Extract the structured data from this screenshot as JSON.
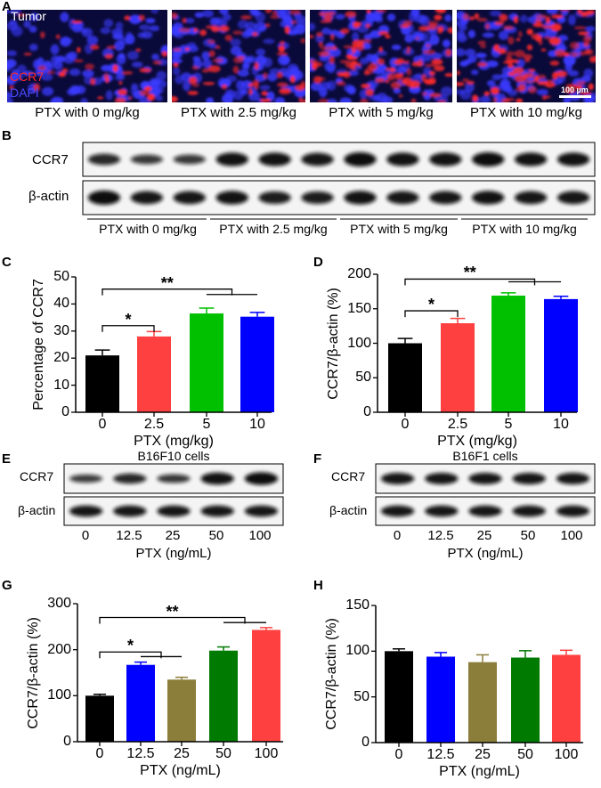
{
  "panels": {
    "A": {
      "letter": "A",
      "tissue_label": "Tumor",
      "stain1": "CCR7",
      "stain2": "DAPI",
      "scale_bar": "100 µm",
      "stain1_color": "#ff2a2a",
      "stain2_color": "#3a3aff",
      "image_labels": [
        "PTX with 0 mg/kg",
        "PTX with 2.5 mg/kg",
        "PTX with 5 mg/kg",
        "PTX with 10 mg/kg"
      ],
      "red_intensity": [
        0.3,
        0.5,
        0.85,
        0.8
      ]
    },
    "B": {
      "letter": "B",
      "rows": [
        "CCR7",
        "β-actin"
      ],
      "group_labels": [
        "PTX with 0 mg/kg",
        "PTX with 2.5 mg/kg",
        "PTX with 5 mg/kg",
        "PTX with 10 mg/kg"
      ]
    },
    "C": {
      "letter": "C"
    },
    "D": {
      "letter": "D"
    },
    "E": {
      "letter": "E",
      "title": "B16F10 cells",
      "rows": [
        "CCR7",
        "β-actin"
      ],
      "lanes": [
        "0",
        "12.5",
        "25",
        "50",
        "100"
      ],
      "xlabel": "PTX (ng/mL)"
    },
    "F": {
      "letter": "F",
      "title": "B16F1 cells",
      "rows": [
        "CCR7",
        "β-actin"
      ],
      "lanes": [
        "0",
        "12.5",
        "25",
        "50",
        "100"
      ],
      "xlabel": "PTX (ng/mL)"
    },
    "G": {
      "letter": "G"
    },
    "H": {
      "letter": "H"
    }
  },
  "chart_data": [
    {
      "id": "C",
      "type": "bar",
      "categories": [
        "0",
        "2.5",
        "5",
        "10"
      ],
      "values": [
        21,
        28,
        36.5,
        35.3
      ],
      "errors": [
        2,
        1.8,
        2,
        1.6
      ],
      "colors": [
        "#000000",
        "#ff4040",
        "#00c000",
        "#0000ff"
      ],
      "xlabel": "PTX (mg/kg)",
      "ylabel": "Percentage of CCR7",
      "ylim": [
        0,
        50
      ],
      "yticks": [
        "0",
        "10",
        "20",
        "30",
        "40",
        "50"
      ],
      "annotations": [
        {
          "label": "*",
          "from": [
            0
          ],
          "to": [
            1
          ],
          "y": 32,
          "sub_y": null
        },
        {
          "label": "**",
          "from": [
            0
          ],
          "to": [
            2,
            3
          ],
          "y": 45.5,
          "sub_y": 43.5
        }
      ]
    },
    {
      "id": "D",
      "type": "bar",
      "categories": [
        "0",
        "2.5",
        "5",
        "10"
      ],
      "values": [
        100,
        129,
        169,
        164
      ],
      "errors": [
        7,
        7,
        4,
        4
      ],
      "colors": [
        "#000000",
        "#ff4040",
        "#00c000",
        "#0000ff"
      ],
      "xlabel": "PTX (mg/kg)",
      "ylabel": "CCR7/β-actin (%)",
      "ylim": [
        0,
        200
      ],
      "yticks": [
        "0",
        "50",
        "100",
        "150",
        "200"
      ],
      "annotations": [
        {
          "label": "*",
          "from": [
            0
          ],
          "to": [
            1
          ],
          "y": 147,
          "sub_y": null
        },
        {
          "label": "**",
          "from": [
            0
          ],
          "to": [
            2,
            3
          ],
          "y": 193,
          "sub_y": 189
        }
      ]
    },
    {
      "id": "G",
      "type": "bar",
      "categories": [
        "0",
        "12.5",
        "25",
        "50",
        "100"
      ],
      "values": [
        100,
        167,
        135,
        198,
        243
      ],
      "errors": [
        3,
        6,
        5,
        8,
        5
      ],
      "colors": [
        "#000000",
        "#0000ff",
        "#8b7d3a",
        "#007a00",
        "#ff4040"
      ],
      "xlabel": "PTX (ng/mL)",
      "ylabel": "CCR7/β-actin (%)",
      "ylim": [
        0,
        300
      ],
      "yticks": [
        "0",
        "100",
        "200",
        "300"
      ],
      "annotations": [
        {
          "label": "*",
          "from": [
            0
          ],
          "to": [
            1,
            2
          ],
          "y": 195,
          "sub_y": 185
        },
        {
          "label": "**",
          "from": [
            0
          ],
          "to": [
            3,
            4
          ],
          "y": 270,
          "sub_y": 259
        }
      ]
    },
    {
      "id": "H",
      "type": "bar",
      "categories": [
        "0",
        "12.5",
        "25",
        "50",
        "100"
      ],
      "values": [
        100,
        94,
        88,
        93,
        96
      ],
      "errors": [
        2.5,
        4.5,
        8,
        7.5,
        5
      ],
      "colors": [
        "#000000",
        "#0000ff",
        "#8b7d3a",
        "#007a00",
        "#ff4040"
      ],
      "xlabel": "PTX (ng/mL)",
      "ylabel": "CCR7/β-actin (%)",
      "ylim": [
        0,
        150
      ],
      "yticks": [
        "0",
        "50",
        "100",
        "150"
      ],
      "annotations": []
    }
  ]
}
